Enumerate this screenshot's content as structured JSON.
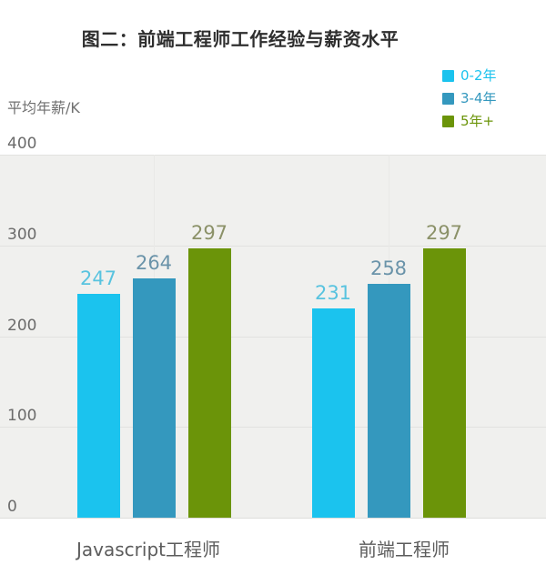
{
  "title": "图二：前端工程师工作经验与薪资水平",
  "y_axis_unit": "平均年薪/K",
  "legend": [
    {
      "label": "0-2年",
      "color": "#1bc3ee"
    },
    {
      "label": "3-4年",
      "color": "#3498be"
    },
    {
      "label": "5年+",
      "color": "#6b9409"
    }
  ],
  "chart_data": {
    "type": "bar",
    "title": "图二：前端工程师工作经验与薪资水平",
    "xlabel": "",
    "ylabel": "平均年薪/K",
    "categories": [
      "Javascript工程师",
      "前端工程师"
    ],
    "series": [
      {
        "name": "0-2年",
        "values": [
          247,
          231
        ],
        "color": "#1bc3ee",
        "label_color": "#58c3df"
      },
      {
        "name": "3-4年",
        "values": [
          264,
          258
        ],
        "color": "#3498be",
        "label_color": "#6a93a9"
      },
      {
        "name": "5年+",
        "values": [
          297,
          297
        ],
        "color": "#6b9409",
        "label_color": "#8b9168"
      }
    ],
    "ylim": [
      0,
      400
    ],
    "yticks": [
      0,
      100,
      200,
      300,
      400
    ],
    "grid": true,
    "legend_position": "top-right",
    "plot_background": "#f0f0ee"
  }
}
